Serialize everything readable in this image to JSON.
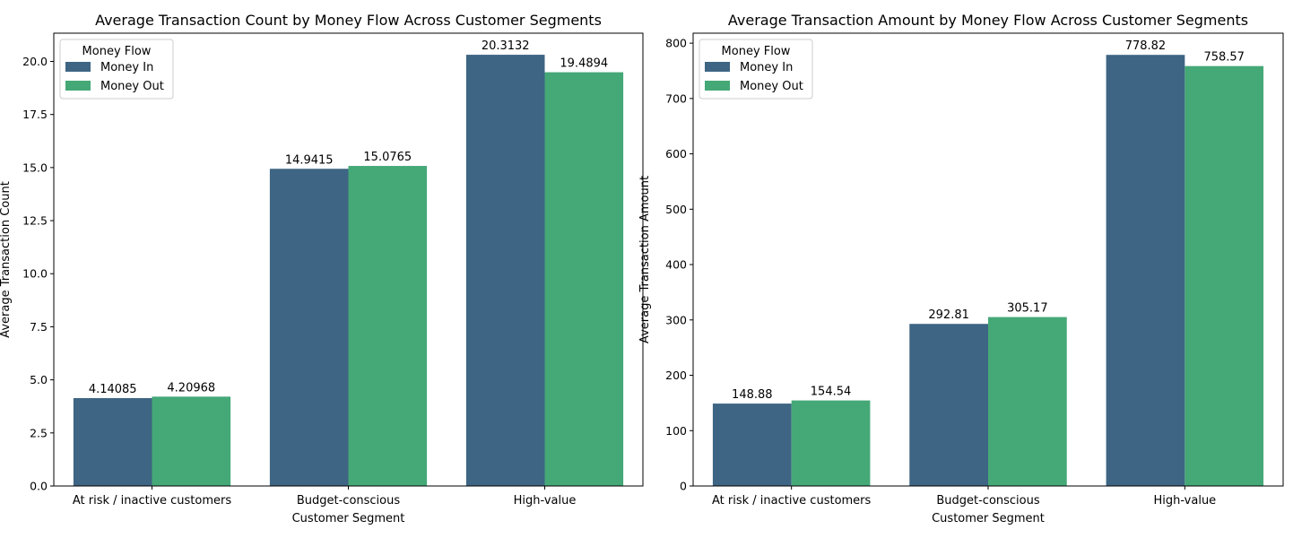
{
  "legend_title": "Money Flow",
  "colors": {
    "Money In": "#3e6583",
    "Money Out": "#45a877"
  },
  "chart_data": [
    {
      "type": "bar",
      "title": "Average Transaction Count by Money Flow Across Customer Segments",
      "xlabel": "Customer Segment",
      "ylabel": "Average Transaction Count",
      "categories": [
        "At risk / inactive customers",
        "Budget-conscious",
        "High-value"
      ],
      "ylim": [
        0,
        21.33
      ],
      "yticks": [
        0.0,
        2.5,
        5.0,
        7.5,
        10.0,
        12.5,
        15.0,
        17.5,
        20.0
      ],
      "ytick_labels": [
        "0.0",
        "2.5",
        "5.0",
        "7.5",
        "10.0",
        "12.5",
        "15.0",
        "17.5",
        "20.0"
      ],
      "legend": {
        "title": "Money Flow",
        "position": "top-left"
      },
      "series": [
        {
          "name": "Money In",
          "values": [
            4.14085,
            14.9415,
            20.3132
          ],
          "labels": [
            "4.14085",
            "14.9415",
            "20.3132"
          ]
        },
        {
          "name": "Money Out",
          "values": [
            4.20968,
            15.0765,
            19.4894
          ],
          "labels": [
            "4.20968",
            "15.0765",
            "19.4894"
          ]
        }
      ]
    },
    {
      "type": "bar",
      "title": "Average Transaction Amount by Money Flow Across Customer Segments",
      "xlabel": "Customer Segment",
      "ylabel": "Average Transaction Amount",
      "categories": [
        "At risk / inactive customers",
        "Budget-conscious",
        "High-value"
      ],
      "ylim": [
        0,
        818
      ],
      "yticks": [
        0,
        100,
        200,
        300,
        400,
        500,
        600,
        700,
        800
      ],
      "ytick_labels": [
        "0",
        "100",
        "200",
        "300",
        "400",
        "500",
        "600",
        "700",
        "800"
      ],
      "legend": {
        "title": "Money Flow",
        "position": "top-left"
      },
      "series": [
        {
          "name": "Money In",
          "values": [
            148.88,
            292.81,
            778.82
          ],
          "labels": [
            "148.88",
            "292.81",
            "778.82"
          ]
        },
        {
          "name": "Money Out",
          "values": [
            154.54,
            305.17,
            758.57
          ],
          "labels": [
            "154.54",
            "305.17",
            "758.57"
          ]
        }
      ]
    }
  ]
}
